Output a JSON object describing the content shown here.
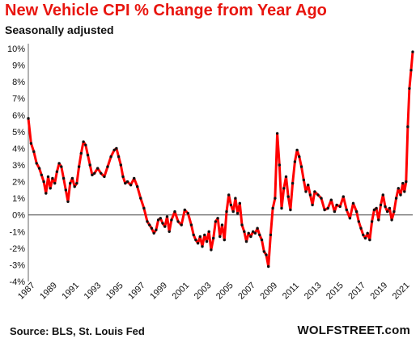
{
  "header": {
    "title": "New Vehicle CPI % Change from Year Ago",
    "subtitle": "Seasonally adjusted"
  },
  "footer": {
    "source": "Source: BLS, St. Louis Fed",
    "brand": "WOLFSTREET.com"
  },
  "chart_data": {
    "type": "line",
    "title": "New Vehicle CPI % Change from Year Ago",
    "subtitle": "Seasonally adjusted",
    "xlabel": "",
    "ylabel": "",
    "xlim": [
      1987.0,
      2021.9
    ],
    "ylim": [
      -4,
      10
    ],
    "y_ticks": [
      10,
      9,
      8,
      7,
      6,
      5,
      4,
      3,
      2,
      1,
      0,
      -1,
      -2,
      -3,
      -4
    ],
    "y_tick_labels": [
      "10%",
      "9%",
      "8%",
      "7%",
      "6%",
      "5%",
      "4%",
      "3%",
      "2%",
      "1%",
      "0%",
      "-1%",
      "-2%",
      "-3%",
      "-4%"
    ],
    "x_ticks": [
      1987,
      1989,
      1991,
      1993,
      1995,
      1997,
      1999,
      2001,
      2003,
      2005,
      2007,
      2009,
      2011,
      2013,
      2015,
      2017,
      2019,
      2021
    ],
    "x_tick_labels": [
      "1987",
      "1989",
      "1991",
      "1993",
      "1995",
      "1997",
      "1999",
      "2001",
      "2003",
      "2005",
      "2007",
      "2009",
      "2011",
      "2013",
      "2015",
      "2017",
      "2019",
      "2021"
    ],
    "grid": false,
    "line_color": "#ff0000",
    "marker_color": "#111111",
    "series": [
      {
        "x": [
          1987.0,
          1987.25,
          1987.5,
          1987.75,
          1988.0,
          1988.2,
          1988.4,
          1988.6,
          1988.8,
          1989.0,
          1989.2,
          1989.4,
          1989.6,
          1989.8,
          1990.0,
          1990.2,
          1990.4,
          1990.6,
          1990.8,
          1991.0,
          1991.2,
          1991.4,
          1991.6,
          1991.8,
          1992.0,
          1992.2,
          1992.4,
          1992.6,
          1992.8,
          1993.0,
          1993.3,
          1993.6,
          1993.9,
          1994.2,
          1994.5,
          1994.8,
          1995.0,
          1995.2,
          1995.4,
          1995.6,
          1995.8,
          1996.0,
          1996.3,
          1996.6,
          1996.9,
          1997.2,
          1997.5,
          1997.8,
          1998.0,
          1998.2,
          1998.4,
          1998.6,
          1998.8,
          1999.0,
          1999.2,
          1999.4,
          1999.6,
          1999.8,
          2000.0,
          2000.3,
          2000.6,
          2000.9,
          2001.2,
          2001.5,
          2001.8,
          2002.0,
          2002.2,
          2002.4,
          2002.6,
          2002.8,
          2003.0,
          2003.2,
          2003.4,
          2003.6,
          2003.8,
          2004.0,
          2004.2,
          2004.4,
          2004.6,
          2004.8,
          2005.0,
          2005.2,
          2005.4,
          2005.6,
          2005.8,
          2006.0,
          2006.2,
          2006.4,
          2006.6,
          2006.8,
          2007.0,
          2007.2,
          2007.4,
          2007.6,
          2007.8,
          2008.0,
          2008.2,
          2008.4,
          2008.6,
          2008.8,
          2009.0,
          2009.2,
          2009.4,
          2009.6,
          2009.8,
          2010.0,
          2010.2,
          2010.4,
          2010.6,
          2010.8,
          2011.0,
          2011.2,
          2011.4,
          2011.6,
          2011.8,
          2012.0,
          2012.2,
          2012.4,
          2012.6,
          2012.8,
          2013.0,
          2013.3,
          2013.6,
          2013.9,
          2014.2,
          2014.5,
          2014.8,
          2015.0,
          2015.3,
          2015.6,
          2015.9,
          2016.2,
          2016.5,
          2016.8,
          2017.0,
          2017.2,
          2017.4,
          2017.6,
          2017.8,
          2018.0,
          2018.2,
          2018.4,
          2018.6,
          2018.8,
          2019.0,
          2019.2,
          2019.4,
          2019.6,
          2019.8,
          2020.0,
          2020.2,
          2020.4,
          2020.6,
          2020.8,
          2021.0,
          2021.15,
          2021.3,
          2021.45,
          2021.6,
          2021.75,
          2021.9
        ],
        "values": [
          5.8,
          4.3,
          3.8,
          3.1,
          2.8,
          2.4,
          2.0,
          1.3,
          2.3,
          1.6,
          2.2,
          1.9,
          2.6,
          3.1,
          2.9,
          2.2,
          1.5,
          0.8,
          1.9,
          2.2,
          1.7,
          1.9,
          2.9,
          3.7,
          4.4,
          4.2,
          3.6,
          3.0,
          2.4,
          2.5,
          2.8,
          2.5,
          2.3,
          2.9,
          3.5,
          3.9,
          4.0,
          3.5,
          3.0,
          2.3,
          1.9,
          2.0,
          1.8,
          2.2,
          1.7,
          1.0,
          0.4,
          -0.4,
          -0.6,
          -0.8,
          -1.1,
          -0.9,
          -0.3,
          -0.2,
          -0.5,
          -0.7,
          -0.1,
          -1.0,
          -0.3,
          0.2,
          -0.4,
          -0.6,
          0.3,
          0.1,
          -0.6,
          -1.2,
          -1.5,
          -1.7,
          -1.3,
          -1.9,
          -1.2,
          -1.6,
          -1.0,
          -2.1,
          -1.4,
          -0.4,
          -0.2,
          -1.3,
          -0.6,
          -1.5,
          0.2,
          1.2,
          0.6,
          0.2,
          1.0,
          0.1,
          0.7,
          -0.6,
          -1.0,
          -1.6,
          -1.1,
          -1.3,
          -1.0,
          -1.1,
          -0.8,
          -1.2,
          -1.5,
          -2.2,
          -2.4,
          -3.1,
          -1.2,
          0.4,
          1.0,
          4.9,
          3.0,
          0.4,
          1.6,
          2.3,
          1.1,
          0.3,
          1.9,
          3.2,
          3.9,
          3.5,
          2.9,
          2.1,
          1.4,
          1.8,
          1.2,
          0.6,
          1.4,
          1.2,
          1.0,
          0.3,
          0.4,
          0.9,
          0.2,
          0.6,
          0.5,
          1.1,
          0.3,
          -0.2,
          0.7,
          0.2,
          -0.4,
          -0.8,
          -1.2,
          -1.4,
          -1.1,
          -1.5,
          -0.4,
          0.3,
          0.4,
          -0.3,
          0.6,
          1.2,
          0.5,
          0.2,
          0.4,
          -0.3,
          0.2,
          1.0,
          1.6,
          1.2,
          1.9,
          1.4,
          2.0,
          5.3,
          7.6,
          8.7,
          9.8
        ]
      }
    ]
  }
}
